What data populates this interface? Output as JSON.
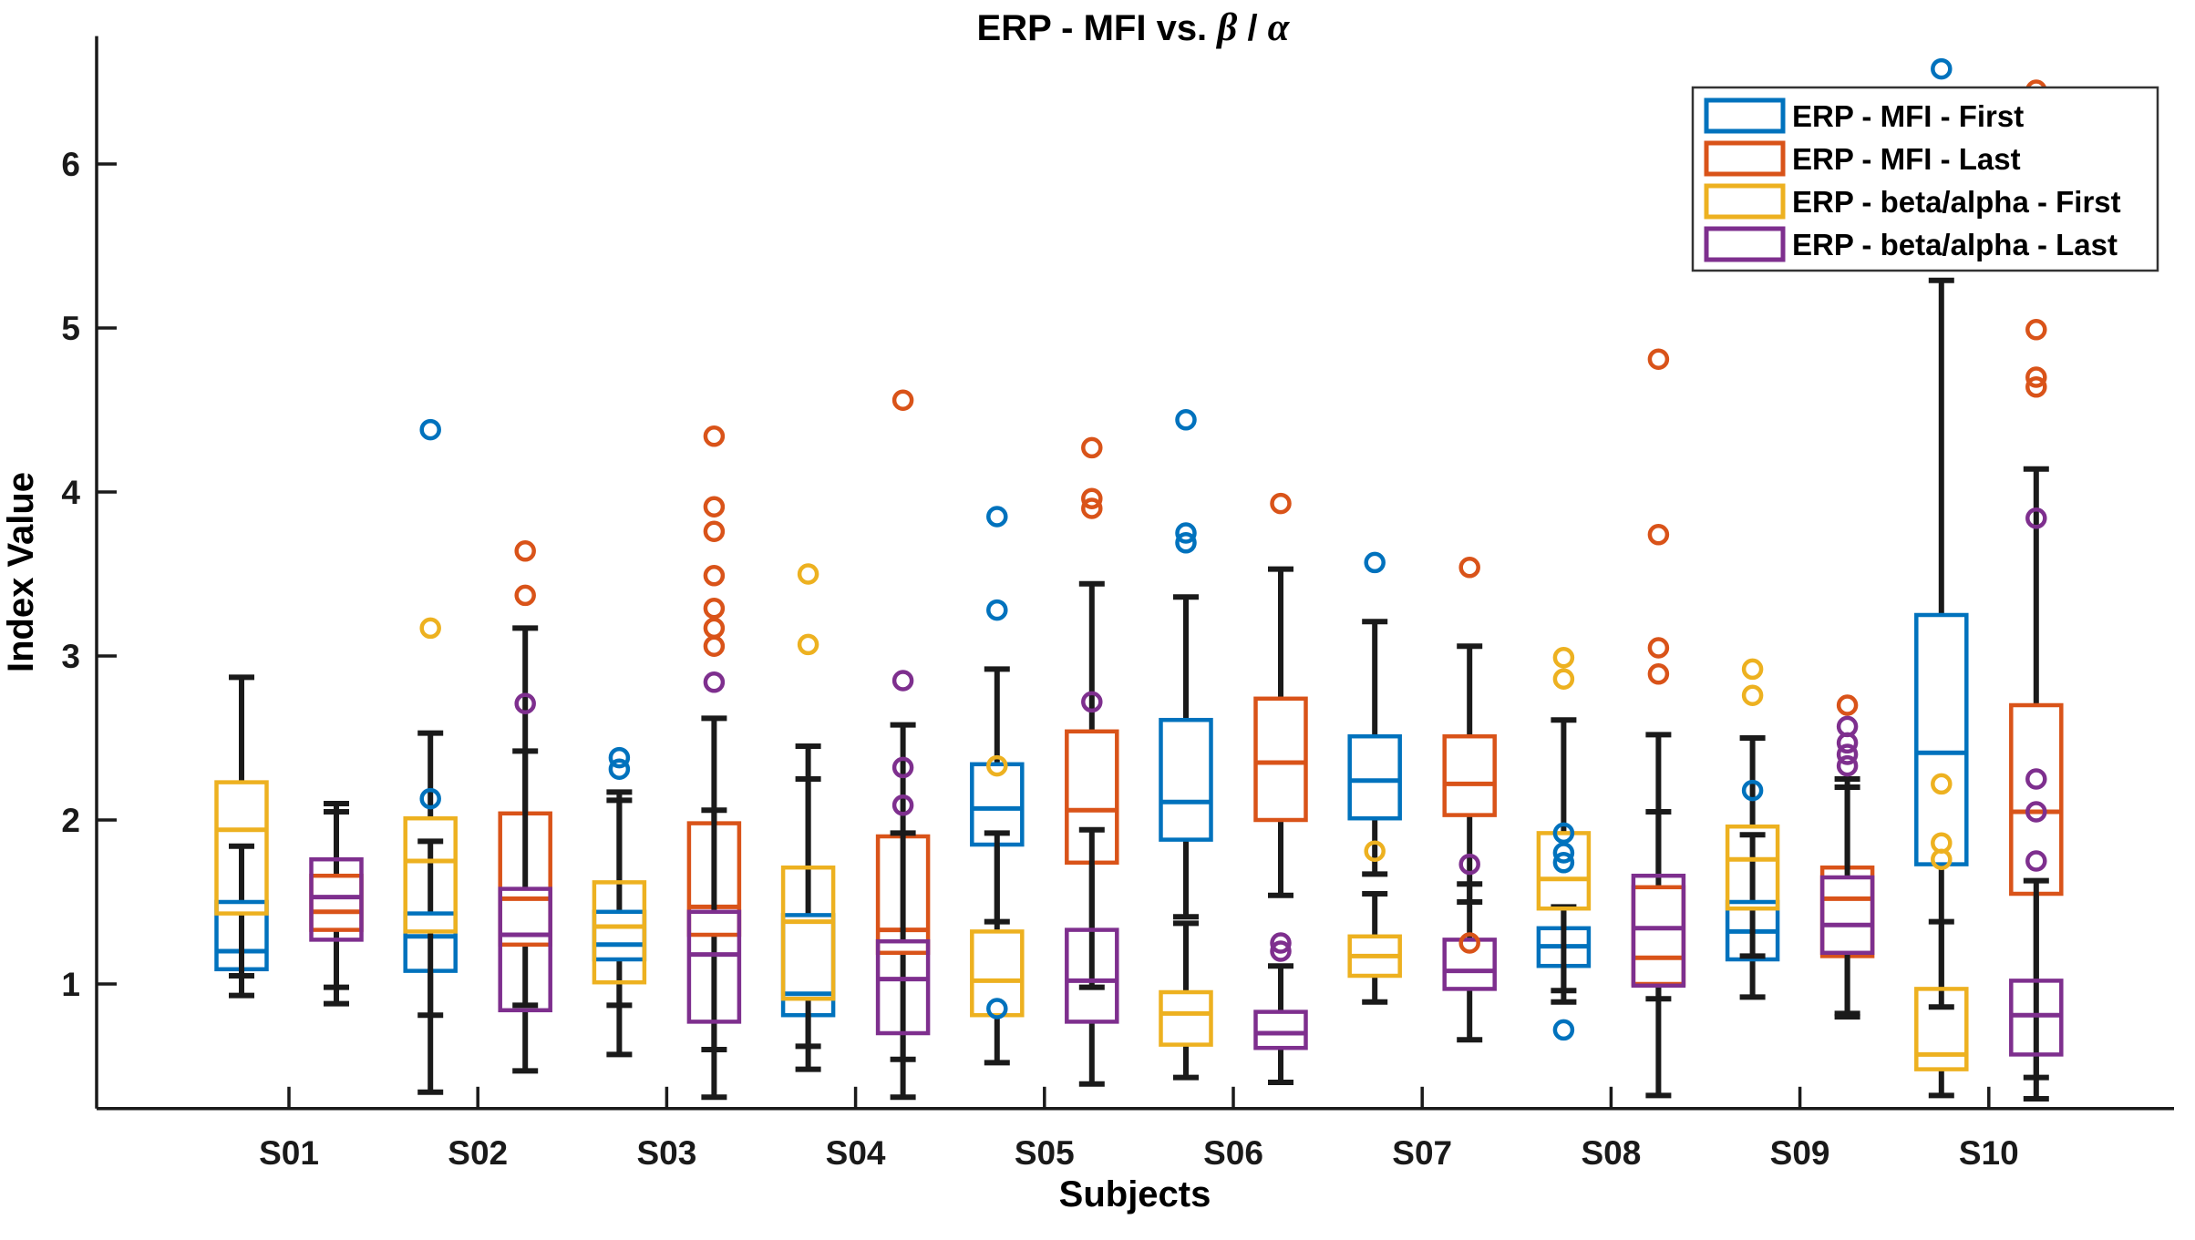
{
  "figure": {
    "background": "#ffffff"
  },
  "chart_data": {
    "type": "boxplot",
    "title_prefix": "ERP - MFI vs. ",
    "title_beta": "β",
    "title_slash": " / ",
    "title_alpha": "α",
    "xlabel": "Subjects",
    "ylabel": "Index Value",
    "y_ticks": [
      1,
      2,
      3,
      4,
      5,
      6
    ],
    "ylim": [
      0.24,
      6.78
    ],
    "grid": false,
    "legend_position": "northeast",
    "axis_color": "#1a1a1a",
    "whisker_color": "#1a1a1a",
    "series": [
      {
        "id": "mfi_first",
        "label": "ERP - MFI - First",
        "color": "#0072BD",
        "slot": "left",
        "layer": 0
      },
      {
        "id": "ba_first",
        "label": "ERP - beta/alpha - First",
        "color": "#EDB120",
        "slot": "left",
        "layer": 1
      },
      {
        "id": "mfi_last",
        "label": "ERP - MFI - Last",
        "color": "#D95319",
        "slot": "right",
        "layer": 0
      },
      {
        "id": "ba_last",
        "label": "ERP - beta/alpha - Last",
        "color": "#7E2F8E",
        "slot": "right",
        "layer": 1
      }
    ],
    "legend_order": [
      "mfi_first",
      "mfi_last",
      "ba_first",
      "ba_last"
    ],
    "subjects": [
      "S01",
      "S02",
      "S03",
      "S04",
      "S05",
      "S06",
      "S07",
      "S08",
      "S09",
      "S10"
    ],
    "boxes": {
      "S01": {
        "mfi_first": {
          "whisker_low": 0.93,
          "q1": 1.09,
          "median": 1.2,
          "q3": 1.5,
          "whisker_high": 1.84,
          "outliers": []
        },
        "ba_first": {
          "whisker_low": 1.05,
          "q1": 1.43,
          "median": 1.94,
          "q3": 2.23,
          "whisker_high": 2.87,
          "outliers": []
        },
        "mfi_last": {
          "whisker_low": 0.98,
          "q1": 1.33,
          "median": 1.44,
          "q3": 1.66,
          "whisker_high": 2.05,
          "outliers": []
        },
        "ba_last": {
          "whisker_low": 0.88,
          "q1": 1.27,
          "median": 1.53,
          "q3": 1.76,
          "whisker_high": 2.1,
          "outliers": []
        }
      },
      "S02": {
        "mfi_first": {
          "whisker_low": 0.34,
          "q1": 1.08,
          "median": 1.29,
          "q3": 1.43,
          "whisker_high": 1.87,
          "outliers": [
            4.38,
            2.13
          ]
        },
        "ba_first": {
          "whisker_low": 0.81,
          "q1": 1.32,
          "median": 1.75,
          "q3": 2.01,
          "whisker_high": 2.53,
          "outliers": [
            3.17
          ]
        },
        "mfi_last": {
          "whisker_low": 0.87,
          "q1": 1.24,
          "median": 1.52,
          "q3": 2.04,
          "whisker_high": 3.17,
          "outliers": [
            3.64,
            3.37
          ]
        },
        "ba_last": {
          "whisker_low": 0.47,
          "q1": 0.84,
          "median": 1.3,
          "q3": 1.58,
          "whisker_high": 2.42,
          "outliers": [
            2.71
          ]
        }
      },
      "S03": {
        "mfi_first": {
          "whisker_low": 0.87,
          "q1": 1.15,
          "median": 1.24,
          "q3": 1.44,
          "whisker_high": 2.17,
          "outliers": [
            2.38,
            2.31
          ]
        },
        "ba_first": {
          "whisker_low": 0.57,
          "q1": 1.01,
          "median": 1.35,
          "q3": 1.62,
          "whisker_high": 2.12,
          "outliers": []
        },
        "mfi_last": {
          "whisker_low": 0.6,
          "q1": 1.3,
          "median": 1.47,
          "q3": 1.98,
          "whisker_high": 2.62,
          "outliers": [
            4.34,
            3.91,
            3.76,
            3.49,
            3.29,
            3.17,
            3.06
          ]
        },
        "ba_last": {
          "whisker_low": 0.31,
          "q1": 0.77,
          "median": 1.18,
          "q3": 1.44,
          "whisker_high": 2.06,
          "outliers": [
            2.84
          ]
        }
      },
      "S04": {
        "mfi_first": {
          "whisker_low": 0.48,
          "q1": 0.81,
          "median": 0.94,
          "q3": 1.42,
          "whisker_high": 2.25,
          "outliers": []
        },
        "ba_first": {
          "whisker_low": 0.62,
          "q1": 0.91,
          "median": 1.38,
          "q3": 1.71,
          "whisker_high": 2.45,
          "outliers": [
            3.5,
            3.07
          ]
        },
        "mfi_last": {
          "whisker_low": 0.54,
          "q1": 1.19,
          "median": 1.33,
          "q3": 1.9,
          "whisker_high": 2.58,
          "outliers": [
            4.56
          ]
        },
        "ba_last": {
          "whisker_low": 0.31,
          "q1": 0.7,
          "median": 1.03,
          "q3": 1.26,
          "whisker_high": 1.92,
          "outliers": [
            2.85,
            2.32,
            2.09
          ]
        }
      },
      "S05": {
        "mfi_first": {
          "whisker_low": 1.38,
          "q1": 1.85,
          "median": 2.07,
          "q3": 2.34,
          "whisker_high": 2.92,
          "outliers": [
            3.85,
            3.28,
            0.85
          ]
        },
        "ba_first": {
          "whisker_low": 0.52,
          "q1": 0.81,
          "median": 1.02,
          "q3": 1.32,
          "whisker_high": 1.92,
          "outliers": [
            2.33
          ]
        },
        "mfi_last": {
          "whisker_low": 0.98,
          "q1": 1.74,
          "median": 2.06,
          "q3": 2.54,
          "whisker_high": 3.44,
          "outliers": [
            4.27,
            3.96,
            3.9
          ]
        },
        "ba_last": {
          "whisker_low": 0.39,
          "q1": 0.77,
          "median": 1.02,
          "q3": 1.33,
          "whisker_high": 1.94,
          "outliers": [
            2.72
          ]
        }
      },
      "S06": {
        "mfi_first": {
          "whisker_low": 1.41,
          "q1": 1.88,
          "median": 2.11,
          "q3": 2.61,
          "whisker_high": 3.36,
          "outliers": [
            4.44,
            3.75,
            3.69
          ]
        },
        "ba_first": {
          "whisker_low": 0.43,
          "q1": 0.63,
          "median": 0.82,
          "q3": 0.95,
          "whisker_high": 1.37,
          "outliers": []
        },
        "mfi_last": {
          "whisker_low": 1.54,
          "q1": 2.0,
          "median": 2.35,
          "q3": 2.74,
          "whisker_high": 3.53,
          "outliers": [
            3.93
          ]
        },
        "ba_last": {
          "whisker_low": 0.4,
          "q1": 0.61,
          "median": 0.7,
          "q3": 0.83,
          "whisker_high": 1.11,
          "outliers": [
            1.25,
            1.2
          ]
        }
      },
      "S07": {
        "mfi_first": {
          "whisker_low": 1.67,
          "q1": 2.01,
          "median": 2.24,
          "q3": 2.51,
          "whisker_high": 3.21,
          "outliers": [
            3.57
          ]
        },
        "ba_first": {
          "whisker_low": 0.89,
          "q1": 1.05,
          "median": 1.17,
          "q3": 1.29,
          "whisker_high": 1.55,
          "outliers": [
            1.81
          ]
        },
        "mfi_last": {
          "whisker_low": 1.5,
          "q1": 2.03,
          "median": 2.22,
          "q3": 2.51,
          "whisker_high": 3.06,
          "outliers": [
            3.54,
            1.25
          ]
        },
        "ba_last": {
          "whisker_low": 0.66,
          "q1": 0.97,
          "median": 1.08,
          "q3": 1.27,
          "whisker_high": 1.61,
          "outliers": [
            1.73
          ]
        }
      },
      "S08": {
        "mfi_first": {
          "whisker_low": 0.96,
          "q1": 1.11,
          "median": 1.23,
          "q3": 1.34,
          "whisker_high": 1.47,
          "outliers": [
            1.92,
            1.8,
            1.74,
            0.72
          ]
        },
        "ba_first": {
          "whisker_low": 0.89,
          "q1": 1.46,
          "median": 1.64,
          "q3": 1.92,
          "whisker_high": 2.61,
          "outliers": [
            2.99,
            2.86
          ]
        },
        "mfi_last": {
          "whisker_low": 0.91,
          "q1": 1.0,
          "median": 1.16,
          "q3": 1.59,
          "whisker_high": 2.52,
          "outliers": [
            4.81,
            3.74,
            3.05,
            2.89
          ]
        },
        "ba_last": {
          "whisker_low": 0.32,
          "q1": 0.99,
          "median": 1.34,
          "q3": 1.66,
          "whisker_high": 2.05,
          "outliers": []
        }
      },
      "S09": {
        "mfi_first": {
          "whisker_low": 0.92,
          "q1": 1.15,
          "median": 1.32,
          "q3": 1.5,
          "whisker_high": 1.91,
          "outliers": [
            2.18
          ]
        },
        "ba_first": {
          "whisker_low": 1.17,
          "q1": 1.46,
          "median": 1.76,
          "q3": 1.96,
          "whisker_high": 2.5,
          "outliers": [
            2.92,
            2.76
          ]
        },
        "mfi_last": {
          "whisker_low": 0.8,
          "q1": 1.17,
          "median": 1.52,
          "q3": 1.71,
          "whisker_high": 2.25,
          "outliers": [
            2.7
          ]
        },
        "ba_last": {
          "whisker_low": 0.82,
          "q1": 1.19,
          "median": 1.36,
          "q3": 1.65,
          "whisker_high": 2.2,
          "outliers": [
            2.57,
            2.47,
            2.4,
            2.33
          ]
        }
      },
      "S10": {
        "mfi_first": {
          "whisker_low": 0.86,
          "q1": 1.73,
          "median": 2.41,
          "q3": 3.25,
          "whisker_high": 5.29,
          "outliers": [
            6.58
          ]
        },
        "ba_first": {
          "whisker_low": 0.32,
          "q1": 0.48,
          "median": 0.57,
          "q3": 0.97,
          "whisker_high": 1.38,
          "outliers": [
            2.22,
            1.86,
            1.76
          ]
        },
        "mfi_last": {
          "whisker_low": 0.43,
          "q1": 1.55,
          "median": 2.05,
          "q3": 2.7,
          "whisker_high": 4.14,
          "outliers": [
            6.45,
            4.99,
            4.7,
            4.64
          ]
        },
        "ba_last": {
          "whisker_low": 0.3,
          "q1": 0.57,
          "median": 0.81,
          "q3": 1.02,
          "whisker_high": 1.63,
          "outliers": [
            3.84,
            2.25,
            2.05,
            1.75
          ]
        }
      }
    }
  }
}
